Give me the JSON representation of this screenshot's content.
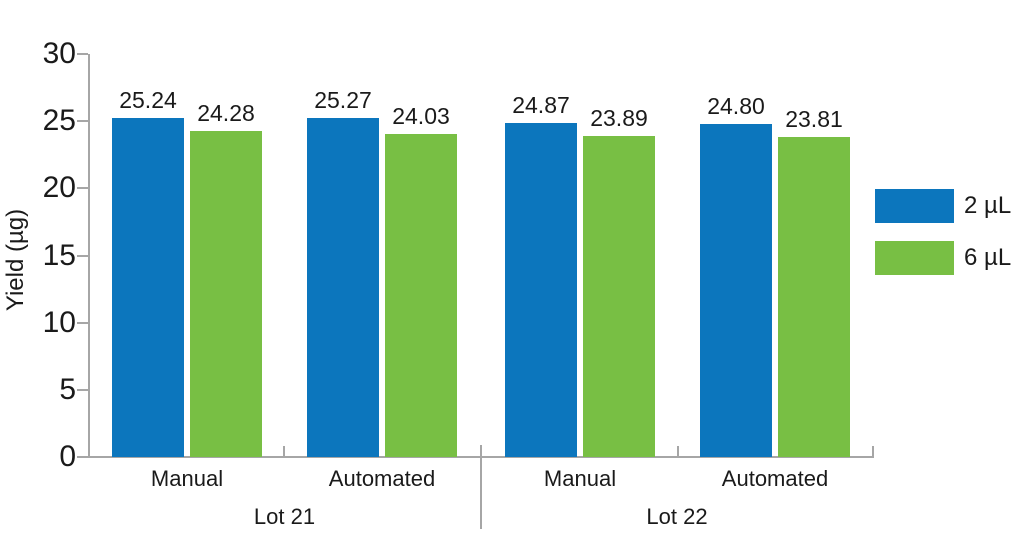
{
  "chart_data": {
    "type": "bar",
    "title": "",
    "ylabel": "Yield (µg)",
    "ylim": [
      0,
      30
    ],
    "yticks": [
      0,
      5,
      10,
      15,
      20,
      25,
      30
    ],
    "ytick_labels": [
      "0",
      "5",
      "10",
      "15",
      "20",
      "25",
      "30"
    ],
    "grid": false,
    "legend_position": "right",
    "groups": [
      {
        "label": "Lot 21",
        "categories": [
          "Manual",
          "Automated"
        ]
      },
      {
        "label": "Lot 22",
        "categories": [
          "Manual",
          "Automated"
        ]
      }
    ],
    "slot_order": [
      "Lot 21 Manual",
      "Lot 21 Automated",
      "Lot 22 Manual",
      "Lot 22 Automated"
    ],
    "series": [
      {
        "name": "2 µL",
        "color": "#0c76bd",
        "values": [
          25.24,
          25.27,
          24.87,
          24.8
        ],
        "labels": [
          "25.24",
          "25.27",
          "24.87",
          "24.80"
        ]
      },
      {
        "name": "6 µL",
        "color": "#78bf44",
        "values": [
          24.28,
          24.03,
          23.89,
          23.81
        ],
        "labels": [
          "24.28",
          "24.03",
          "23.89",
          "23.81"
        ]
      }
    ],
    "colors": {
      "axis": "#a6a6a6",
      "text": "#1a1a1a",
      "background": "#ffffff"
    }
  }
}
